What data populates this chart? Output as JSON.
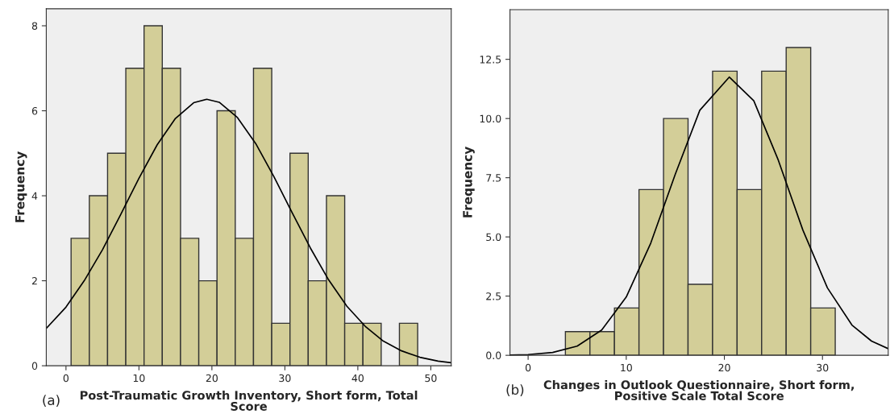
{
  "chart_data": [
    {
      "type": "histogram",
      "ylabel": "Frequency",
      "xlabel": "Post-Traumatic Growth Inventory, Short form, Total\nScore",
      "annotations": [
        "(a)"
      ],
      "bins": [
        0.7,
        3.2,
        5.7,
        8.2,
        10.7,
        13.2,
        15.7,
        18.2,
        20.7,
        23.2,
        25.7,
        28.2,
        30.7,
        33.2,
        35.7,
        38.2,
        40.7,
        43.2,
        45.7,
        48.2
      ],
      "values": [
        3,
        4,
        5,
        7,
        8,
        7,
        3,
        2,
        6,
        3,
        7,
        1,
        5,
        2,
        4,
        1,
        1,
        0,
        1
      ],
      "color": "#d3ce98",
      "series": [
        {
          "type": "line",
          "color": "#000000",
          "x": [
            -2.7,
            0,
            2.5,
            5,
            7.5,
            10,
            12.5,
            15,
            17.5,
            19.3,
            21,
            23.5,
            26,
            28.5,
            31,
            33.5,
            36,
            38.5,
            41,
            43.5,
            46,
            48.5,
            51,
            52.8
          ],
          "values": [
            0.88,
            1.38,
            2.0,
            2.73,
            3.56,
            4.41,
            5.2,
            5.82,
            6.19,
            6.27,
            6.2,
            5.84,
            5.23,
            4.45,
            3.6,
            2.77,
            2.02,
            1.4,
            0.93,
            0.58,
            0.35,
            0.2,
            0.11,
            0.07
          ]
        }
      ],
      "xlim": [
        -2.7,
        52.8
      ],
      "ylim": [
        0,
        8.4
      ],
      "xticks": [
        0,
        10,
        20,
        30,
        40,
        50
      ],
      "yticks": [
        0,
        2,
        4,
        6,
        8
      ],
      "grid": false,
      "legend": false
    },
    {
      "type": "histogram",
      "ylabel": "Frequency",
      "xlabel": "Changes in Outlook Questionnaire, Short form,\nPositive Scale Total Score",
      "annotations": [
        "(b)"
      ],
      "bins": [
        3.8,
        6.3,
        8.8,
        11.3,
        13.8,
        16.3,
        18.8,
        21.3,
        23.8,
        26.3,
        28.8,
        31.3
      ],
      "values": [
        1,
        1,
        2,
        7,
        10,
        3,
        12,
        7,
        12,
        13,
        2
      ],
      "color": "#d3ce98",
      "series": [
        {
          "type": "line",
          "color": "#000000",
          "x": [
            -1.85,
            0,
            2.5,
            5,
            7.5,
            10,
            12.5,
            15,
            17.5,
            20.5,
            23,
            25.5,
            28,
            30.5,
            33,
            35,
            36.7
          ],
          "values": [
            0.01,
            0.03,
            0.12,
            0.39,
            1.07,
            2.46,
            4.74,
            7.65,
            10.35,
            11.75,
            10.75,
            8.24,
            5.29,
            2.85,
            1.28,
            0.6,
            0.28
          ]
        }
      ],
      "xlim": [
        -1.85,
        36.7
      ],
      "ylim": [
        0,
        14.6
      ],
      "xticks": [
        0,
        10,
        20,
        30
      ],
      "yticks": [
        {
          "value": 0,
          "label": "0.0"
        },
        {
          "value": 2.5,
          "label": "2.5"
        },
        {
          "value": 5,
          "label": "5.0"
        },
        {
          "value": 7.5,
          "label": "7.5"
        },
        {
          "value": 10,
          "label": "10.0"
        },
        {
          "value": 12.5,
          "label": "12.5"
        }
      ],
      "grid": false,
      "legend": false
    }
  ]
}
